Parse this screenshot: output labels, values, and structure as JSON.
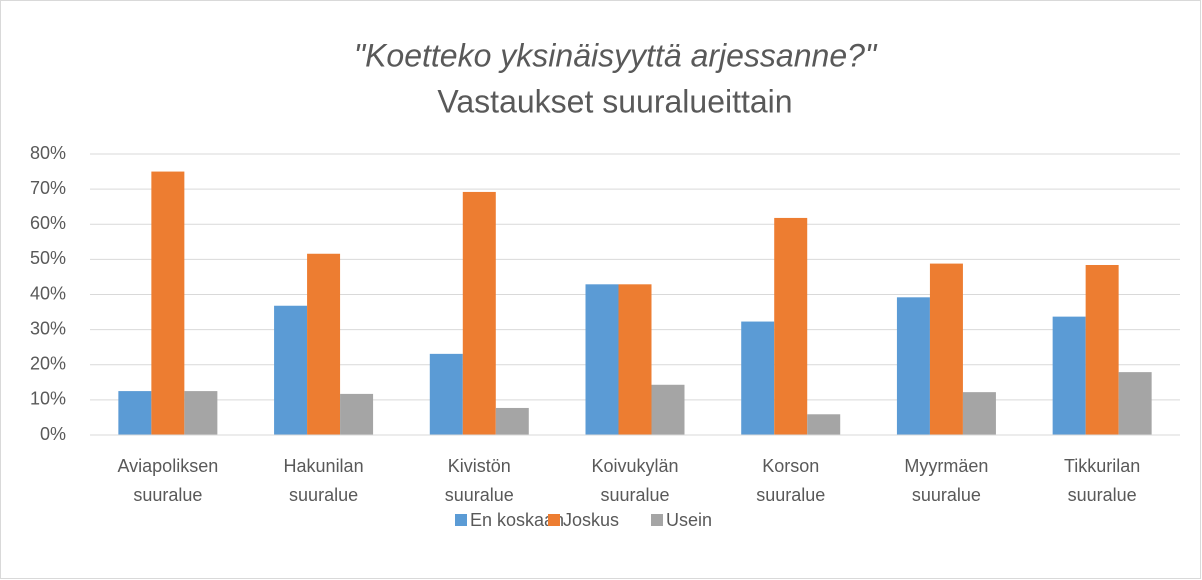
{
  "chart_data": {
    "type": "bar",
    "title": "\"Koetteko yksinäisyyttä arjessanne?\"",
    "subtitle": "Vastaukset suuralueittain",
    "categories": [
      "Aviapoliksen suuralue",
      "Hakunilan suuralue",
      "Kivistön suuralue",
      "Koivukylän suuralue",
      "Korson suuralue",
      "Myyrmäen suuralue",
      "Tikkurilan suuralue"
    ],
    "series": [
      {
        "name": "En koskaan",
        "color": "#5b9bd5",
        "values": [
          12.5,
          36.8,
          23.1,
          42.9,
          32.3,
          39.2,
          33.7
        ]
      },
      {
        "name": "Joskus",
        "color": "#ed7d31",
        "values": [
          75,
          51.6,
          69.2,
          42.9,
          61.8,
          48.8,
          48.4
        ]
      },
      {
        "name": "Usein",
        "color": "#a5a5a5",
        "values": [
          12.5,
          11.7,
          7.7,
          14.3,
          5.9,
          12.2,
          17.9
        ]
      }
    ],
    "ylim": [
      0,
      80
    ],
    "yticks": [
      {
        "value": 0,
        "label": "0%"
      },
      {
        "value": 10,
        "label": "10%"
      },
      {
        "value": 20,
        "label": "20%"
      },
      {
        "value": 30,
        "label": "30%"
      },
      {
        "value": 40,
        "label": "40%"
      },
      {
        "value": 50,
        "label": "50%"
      },
      {
        "value": 60,
        "label": "60%"
      },
      {
        "value": 70,
        "label": "70%"
      },
      {
        "value": 80,
        "label": "80%"
      }
    ],
    "grid": true,
    "legend": "bottom"
  }
}
